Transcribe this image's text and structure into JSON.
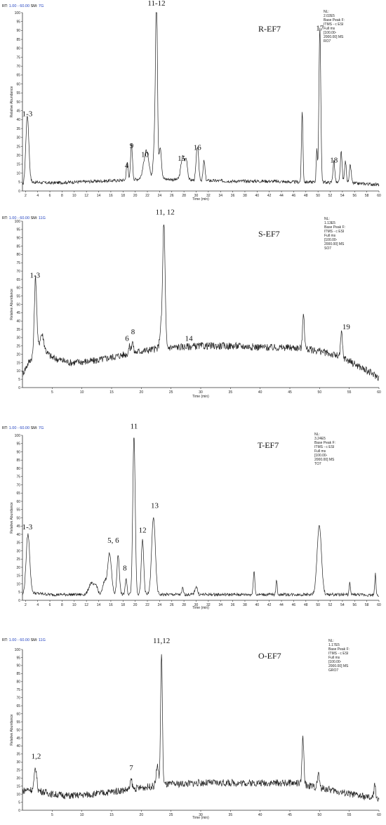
{
  "chart_data": [
    {
      "type": "line",
      "sample_label": "R-EF7",
      "rt_prefix": "RT: ",
      "rt_range": "1.00 - 60.00",
      "sm_prefix": "SM: ",
      "sm": "7G",
      "nl_lines": [
        "NL:",
        "2.02E5",
        "Base Peak F:",
        "ITMS - c ESI",
        "Full ms",
        "[100.00-",
        "2000.00]  MS",
        "RO7"
      ],
      "ylabel": "Relative Abundance",
      "xlabel": "Time (min)",
      "xlim": [
        1.5,
        60
      ],
      "ylim": [
        0,
        100
      ],
      "xticks": [
        2,
        4,
        6,
        8,
        10,
        12,
        14,
        16,
        18,
        20,
        22,
        24,
        26,
        28,
        30,
        32,
        34,
        36,
        38,
        40,
        42,
        44,
        46,
        48,
        50,
        52,
        54,
        56,
        58,
        60
      ],
      "yticks": [
        0,
        5,
        10,
        15,
        20,
        25,
        30,
        35,
        40,
        45,
        50,
        55,
        60,
        65,
        70,
        75,
        80,
        85,
        90,
        95,
        100
      ],
      "baseline": [
        [
          1.5,
          3
        ],
        [
          2,
          4
        ],
        [
          3,
          5
        ],
        [
          6,
          4.5
        ],
        [
          10,
          5
        ],
        [
          14,
          5.5
        ],
        [
          18,
          6
        ],
        [
          20,
          6.5
        ],
        [
          22,
          7.5
        ],
        [
          24,
          7
        ],
        [
          26,
          6.5
        ],
        [
          30,
          6
        ],
        [
          36,
          5.5
        ],
        [
          42,
          5.5
        ],
        [
          46,
          5
        ],
        [
          50,
          5
        ],
        [
          54,
          4.5
        ],
        [
          58,
          4
        ],
        [
          60,
          3.5
        ]
      ],
      "peaks": [
        [
          2.3,
          38,
          0.25
        ],
        [
          18.7,
          10,
          0.15
        ],
        [
          19.4,
          20,
          0.15
        ],
        [
          21.8,
          15,
          0.4
        ],
        [
          23.2,
          22,
          0.2
        ],
        [
          23.5,
          100,
          0.15
        ],
        [
          24.1,
          18,
          0.2
        ],
        [
          27.8,
          13,
          0.3
        ],
        [
          28.4,
          10,
          0.2
        ],
        [
          30.2,
          19,
          0.2
        ],
        [
          31.3,
          11,
          0.15
        ],
        [
          47.4,
          40,
          0.12
        ],
        [
          49.8,
          19,
          0.1
        ],
        [
          50.3,
          87,
          0.15
        ],
        [
          52.6,
          12,
          0.15
        ],
        [
          53.8,
          17,
          0.15
        ],
        [
          54.5,
          12,
          0.15
        ],
        [
          55.3,
          10,
          0.15
        ]
      ],
      "annotations": [
        {
          "text": "1-3",
          "x": 2.3,
          "y": 42
        },
        {
          "text": "4",
          "x": 18.6,
          "y": 13
        },
        {
          "text": "9",
          "x": 19.4,
          "y": 24
        },
        {
          "text": "10",
          "x": 21.6,
          "y": 19
        },
        {
          "text": "11-12",
          "x": 23.5,
          "y": 104
        },
        {
          "text": "15",
          "x": 27.6,
          "y": 17
        },
        {
          "text": "16",
          "x": 30.2,
          "y": 23
        },
        {
          "text": "17",
          "x": 50.3,
          "y": 90
        },
        {
          "text": "18",
          "x": 52.6,
          "y": 16
        }
      ]
    },
    {
      "type": "line",
      "sample_label": "S-EF7",
      "rt_prefix": "RT: ",
      "rt_range": "1.00 - 60.00",
      "sm_prefix": "SM: ",
      "sm": "11G",
      "nl_lines": [
        "NL:",
        "1.13E5",
        "Base Peak F:",
        "ITMS - c ESI",
        "Full ms",
        "[100.00-",
        "2000.00]  MS",
        "SO7"
      ],
      "ylabel": "Relative Abundance",
      "xlabel": "Time (min)",
      "xlim": [
        0,
        60
      ],
      "ylim": [
        0,
        100
      ],
      "xticks": [
        5,
        10,
        15,
        20,
        25,
        30,
        35,
        40,
        45,
        50,
        55,
        60
      ],
      "yticks": [
        0,
        5,
        10,
        15,
        20,
        25,
        30,
        35,
        40,
        45,
        50,
        55,
        60,
        65,
        70,
        75,
        80,
        85,
        90,
        95,
        100
      ],
      "baseline": [
        [
          0,
          8
        ],
        [
          1,
          15
        ],
        [
          2,
          20
        ],
        [
          3,
          25
        ],
        [
          5,
          18
        ],
        [
          8,
          15
        ],
        [
          12,
          16
        ],
        [
          16,
          19
        ],
        [
          20,
          22
        ],
        [
          24,
          24
        ],
        [
          30,
          25
        ],
        [
          36,
          25
        ],
        [
          42,
          24
        ],
        [
          46,
          24
        ],
        [
          50,
          22
        ],
        [
          54,
          18
        ],
        [
          58,
          10
        ],
        [
          60,
          6
        ]
      ],
      "peaks": [
        [
          2.2,
          45,
          0.2
        ],
        [
          3.3,
          8,
          0.3
        ],
        [
          18.0,
          4,
          0.15
        ],
        [
          18.5,
          7,
          0.15
        ],
        [
          23.3,
          12,
          0.2
        ],
        [
          23.8,
          75,
          0.2
        ],
        [
          47.3,
          22,
          0.15
        ],
        [
          53.7,
          15,
          0.15
        ]
      ],
      "annotations": [
        {
          "text": "1-3",
          "x": 2.1,
          "y": 66
        },
        {
          "text": "6",
          "x": 17.6,
          "y": 28
        },
        {
          "text": "8",
          "x": 18.6,
          "y": 32
        },
        {
          "text": "11, 12",
          "x": 24,
          "y": 104
        },
        {
          "text": "14",
          "x": 28,
          "y": 28
        },
        {
          "text": "19",
          "x": 54.5,
          "y": 35
        }
      ]
    },
    {
      "type": "line",
      "sample_label": "T-EF7",
      "rt_prefix": "RT: ",
      "rt_range": "1.00 - 60.00",
      "sm_prefix": "SM: ",
      "sm": "7G",
      "nl_lines": [
        "NL:",
        "3.24E5",
        "Base Peak F:",
        "ITMS - c ESI",
        "Full ms",
        "[100.00-",
        "2000.00]  MS",
        "TO7"
      ],
      "ylabel": "Relative Abundance",
      "xlabel": "Time (min)",
      "xlim": [
        1.5,
        60
      ],
      "ylim": [
        0,
        100
      ],
      "xticks": [
        2,
        4,
        6,
        8,
        10,
        12,
        14,
        16,
        18,
        20,
        22,
        24,
        26,
        28,
        30,
        32,
        34,
        36,
        38,
        40,
        42,
        44,
        46,
        48,
        50,
        52,
        54,
        56,
        58,
        60
      ],
      "yticks": [
        0,
        5,
        10,
        15,
        20,
        25,
        30,
        35,
        40,
        45,
        50,
        55,
        60,
        65,
        70,
        75,
        80,
        85,
        90,
        95,
        100
      ],
      "baseline": [
        [
          1.5,
          3
        ],
        [
          3,
          4.5
        ],
        [
          6,
          3.5
        ],
        [
          10,
          3.5
        ],
        [
          14,
          3.5
        ],
        [
          18,
          3.5
        ],
        [
          24,
          3.5
        ],
        [
          30,
          3.5
        ],
        [
          40,
          3.5
        ],
        [
          48,
          3.5
        ],
        [
          52,
          3.5
        ],
        [
          56,
          3.5
        ],
        [
          60,
          3
        ]
      ],
      "peaks": [
        [
          2.4,
          36,
          0.3
        ],
        [
          12.8,
          7,
          0.4
        ],
        [
          13.6,
          5,
          0.25
        ],
        [
          15.0,
          8,
          0.3
        ],
        [
          15.8,
          25,
          0.3
        ],
        [
          17.2,
          24,
          0.2
        ],
        [
          18.5,
          9,
          0.15
        ],
        [
          19.8,
          96,
          0.2
        ],
        [
          21.2,
          33,
          0.2
        ],
        [
          23.0,
          47,
          0.3
        ],
        [
          27.8,
          4,
          0.12
        ],
        [
          30.0,
          5,
          0.2
        ],
        [
          39.5,
          15,
          0.12
        ],
        [
          43.2,
          9,
          0.1
        ],
        [
          50.2,
          42,
          0.35
        ],
        [
          55.2,
          7,
          0.1
        ],
        [
          59.4,
          13,
          0.1
        ]
      ],
      "annotations": [
        {
          "text": "1-3",
          "x": 2.3,
          "y": 43
        },
        {
          "text": "5, 6",
          "x": 16.4,
          "y": 35
        },
        {
          "text": "8",
          "x": 18.3,
          "y": 18
        },
        {
          "text": "11",
          "x": 19.8,
          "y": 104
        },
        {
          "text": "12",
          "x": 21.2,
          "y": 41
        },
        {
          "text": "13",
          "x": 23.2,
          "y": 56
        }
      ]
    },
    {
      "type": "line",
      "sample_label": "O-EF7",
      "rt_prefix": "RT: ",
      "rt_range": "1.00 - 60.00",
      "sm_prefix": "SM: ",
      "sm": "11G",
      "nl_lines": [
        "NL:",
        "1.17E5",
        "Base Peak F:",
        "ITMS - c ESI",
        "Full ms",
        "[100.00-",
        "2000.00]  MS",
        "GRO7"
      ],
      "ylabel": "Relative Abundance",
      "xlabel": "Time (min)",
      "xlim": [
        0,
        60
      ],
      "ylim": [
        0,
        100
      ],
      "xticks": [
        5,
        10,
        15,
        20,
        25,
        30,
        35,
        40,
        45,
        50,
        55,
        60
      ],
      "yticks": [
        0,
        5,
        10,
        15,
        20,
        25,
        30,
        35,
        40,
        45,
        50,
        55,
        60,
        65,
        70,
        75,
        80,
        85,
        90,
        95,
        100
      ],
      "baseline": [
        [
          0,
          12
        ],
        [
          1,
          13
        ],
        [
          3,
          12
        ],
        [
          5,
          10
        ],
        [
          8,
          9
        ],
        [
          12,
          10
        ],
        [
          16,
          12
        ],
        [
          20,
          14
        ],
        [
          24,
          16
        ],
        [
          30,
          17
        ],
        [
          36,
          17
        ],
        [
          42,
          17
        ],
        [
          46,
          17
        ],
        [
          50,
          14
        ],
        [
          54,
          11
        ],
        [
          58,
          8
        ],
        [
          60,
          7
        ]
      ],
      "peaks": [
        [
          2.2,
          14,
          0.2
        ],
        [
          18.3,
          6,
          0.15
        ],
        [
          22.7,
          12,
          0.2
        ],
        [
          23.4,
          82,
          0.15
        ],
        [
          47.2,
          29,
          0.15
        ],
        [
          49.8,
          9,
          0.15
        ],
        [
          59.3,
          8,
          0.15
        ]
      ],
      "annotations": [
        {
          "text": "1,2",
          "x": 2.3,
          "y": 32
        },
        {
          "text": "7",
          "x": 18.3,
          "y": 25
        },
        {
          "text": "11,12",
          "x": 23.4,
          "y": 104
        }
      ]
    }
  ]
}
